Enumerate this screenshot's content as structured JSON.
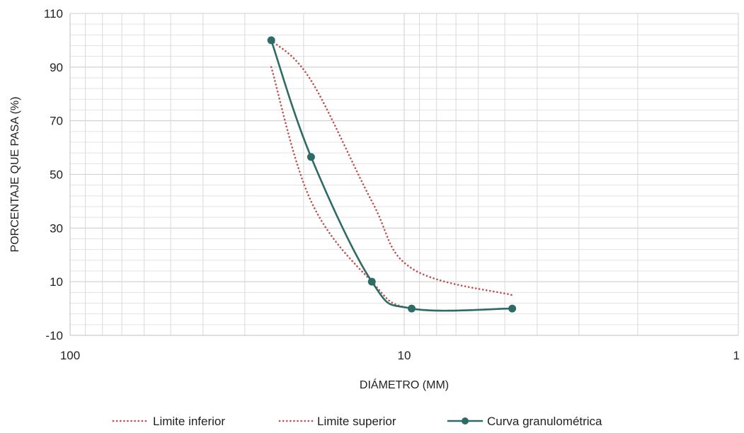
{
  "chart_data": {
    "type": "line",
    "title": "",
    "xlabel": "DIÁMETRO (MM)",
    "ylabel": "PORCENTAJE QUE PASA (%)",
    "x_scale": "log",
    "x_reversed": true,
    "xlim": [
      100,
      1
    ],
    "ylim": [
      -10,
      110
    ],
    "x_ticks": [
      100,
      10,
      1
    ],
    "x_tick_labels": [
      "100",
      "10",
      "1"
    ],
    "y_ticks": [
      -10,
      10,
      30,
      50,
      70,
      90,
      110
    ],
    "y_tick_labels": [
      "-10",
      "10",
      "30",
      "50",
      "70",
      "90",
      "110"
    ],
    "grid": true,
    "legend_position": "bottom",
    "series": [
      {
        "name": "Limite inferior",
        "style": "dotted",
        "color": "#c0504d",
        "x": [
          25,
          19,
          12.5,
          9.5,
          4.75
        ],
        "y": [
          90,
          40,
          10,
          0,
          0
        ]
      },
      {
        "name": "Limite superior",
        "style": "dotted",
        "color": "#c0504d",
        "x": [
          25,
          19,
          12.5,
          9.5,
          4.75
        ],
        "y": [
          100,
          85,
          40,
          15,
          5
        ]
      },
      {
        "name": "Curva granulométrica",
        "style": "solid-markers",
        "color": "#2e6b66",
        "x": [
          25,
          19,
          12.5,
          9.5,
          4.75
        ],
        "y": [
          100,
          56.5,
          10,
          0,
          0
        ]
      }
    ]
  }
}
